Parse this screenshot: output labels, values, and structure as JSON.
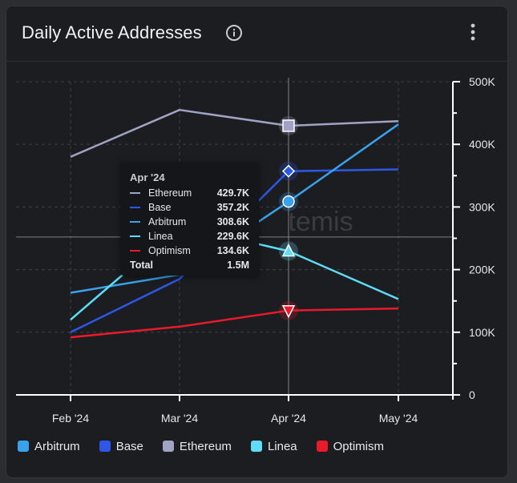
{
  "card": {
    "title": "Daily Active Addresses",
    "info_icon": "info-circle-icon",
    "menu_icon": "vertical-ellipsis-icon"
  },
  "watermark": "temis",
  "colors": {
    "Ethereum": "#9fa3c4",
    "Base": "#2d58e6",
    "Arbitrum": "#3aa2ea",
    "Linea": "#5fdcf7",
    "Optimism": "#ea1a2b"
  },
  "chart_data": {
    "type": "line",
    "x": [
      "Feb '24",
      "Mar '24",
      "Apr '24",
      "May '24"
    ],
    "ylim": [
      0,
      500000
    ],
    "yticks": [
      0,
      100000,
      200000,
      300000,
      400000,
      500000
    ],
    "ytick_labels": [
      "0",
      "100K",
      "200K",
      "300K",
      "400K",
      "500K"
    ],
    "grid": true,
    "legend_position": "bottom",
    "series": [
      {
        "name": "Ethereum",
        "values": [
          380000,
          455000,
          429700,
          437000
        ],
        "marker": "square"
      },
      {
        "name": "Base",
        "values": [
          100000,
          185000,
          357200,
          360000
        ],
        "marker": "diamond"
      },
      {
        "name": "Arbitrum",
        "values": [
          163000,
          192000,
          308600,
          432000
        ],
        "marker": "circle"
      },
      {
        "name": "Linea",
        "values": [
          120000,
          270000,
          229600,
          153000
        ],
        "marker": "triangle-up"
      },
      {
        "name": "Optimism",
        "values": [
          92000,
          109000,
          134600,
          138000
        ],
        "marker": "triangle-down"
      }
    ],
    "hover_index": 2,
    "crosshair_y_value": 252000
  },
  "tooltip": {
    "title": "Apr '24",
    "rows": [
      {
        "name": "Ethereum",
        "value": "429.7K"
      },
      {
        "name": "Base",
        "value": "357.2K"
      },
      {
        "name": "Arbitrum",
        "value": "308.6K"
      },
      {
        "name": "Linea",
        "value": "229.6K"
      },
      {
        "name": "Optimism",
        "value": "134.6K"
      }
    ],
    "total_label": "Total",
    "total_value": "1.5M"
  },
  "legend": [
    "Arbitrum",
    "Base",
    "Ethereum",
    "Linea",
    "Optimism"
  ]
}
